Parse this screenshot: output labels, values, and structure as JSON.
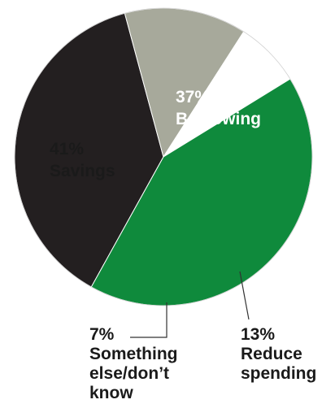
{
  "chart_data": {
    "type": "pie",
    "slices": [
      {
        "label_lines": [
          "37%",
          "Borrowing"
        ],
        "value": 37,
        "color": "#231f20",
        "text_color": "#ffffff",
        "placement": "inside"
      },
      {
        "label_lines": [
          "13%",
          "Reduce",
          "spending"
        ],
        "value": 13,
        "color": "#a7a99b",
        "text_color": "#1a1a1a",
        "placement": "outside"
      },
      {
        "label_lines": [
          "7%",
          "Something",
          "else/don’t",
          "know"
        ],
        "value": 7,
        "color": "#ffffff",
        "text_color": "#1a1a1a",
        "placement": "outside"
      },
      {
        "label_lines": [
          "41%",
          "Savings"
        ],
        "value": 41,
        "color": "#0f8a3c",
        "text_color": "#1a1a1a",
        "placement": "inside"
      }
    ],
    "start_angle_deg": 209,
    "direction": "clockwise",
    "title": "",
    "legend": "none"
  }
}
